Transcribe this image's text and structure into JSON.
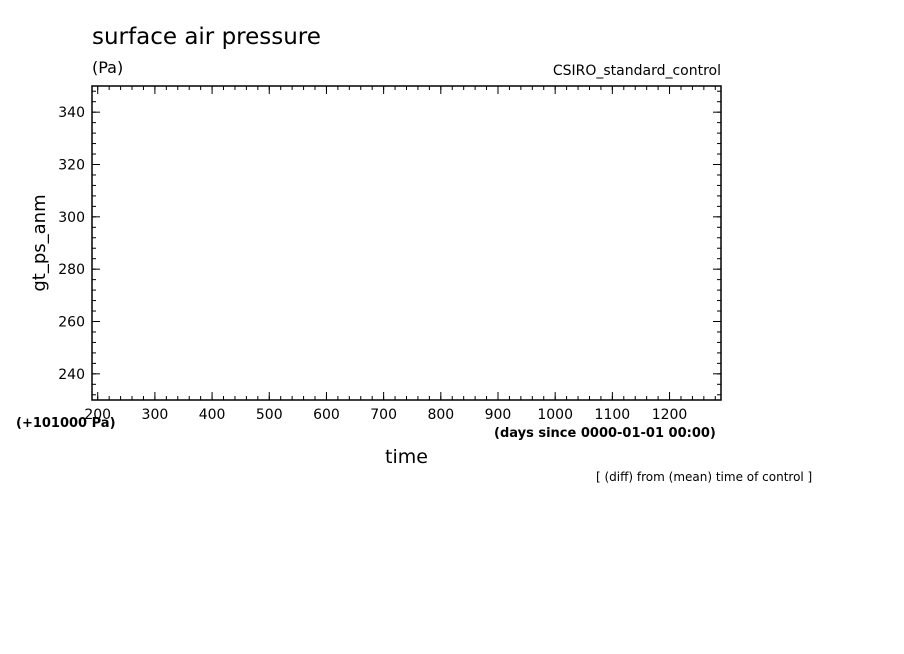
{
  "chart_data": {
    "type": "line",
    "title": "surface air pressure",
    "units": "(Pa)",
    "run_label": "CSIRO_standard_control",
    "xlabel": "time",
    "xunits": "(days since 0000-01-01 00:00)",
    "ylabel": "gt_ps_anm",
    "y_offset_label": "(+101000 Pa)",
    "note": "[ (diff) from (mean) time of control ]",
    "xlim": [
      190,
      1290
    ],
    "ylim": [
      230,
      350
    ],
    "xticks": [
      200,
      300,
      400,
      500,
      600,
      700,
      800,
      900,
      1000,
      1100,
      1200
    ],
    "xtick_labels": [
      "200",
      "300",
      "400",
      "500",
      "600",
      "700",
      "800",
      "900",
      "1000",
      "1100",
      "1200"
    ],
    "yticks": [
      240,
      260,
      280,
      300,
      320,
      340
    ],
    "ytick_labels": [
      "240",
      "260",
      "280",
      "300",
      "320",
      "340"
    ],
    "x_minor_step": 20,
    "y_minor_step": 4,
    "grid": false,
    "series": []
  }
}
